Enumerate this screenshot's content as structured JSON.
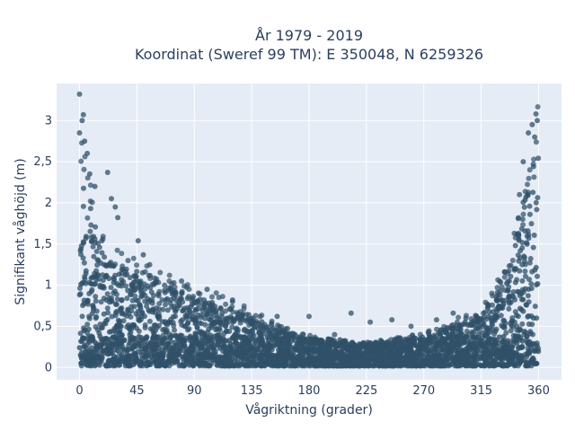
{
  "chart_data": {
    "type": "scatter",
    "title_line1": "År 1979 - 2019",
    "title_line2": "Koordinat (Sweref 99 TM): E 350048, N 6259326",
    "xlabel": "Vågriktning (grader)",
    "ylabel": "Signifikant våghöjd (m)",
    "xlim": [
      -18,
      378
    ],
    "ylim": [
      -0.15,
      3.45
    ],
    "xticks": [
      0,
      45,
      90,
      135,
      180,
      225,
      270,
      315,
      360
    ],
    "xtick_labels": [
      "0",
      "45",
      "90",
      "135",
      "180",
      "225",
      "270",
      "315",
      "360"
    ],
    "yticks": [
      0,
      0.5,
      1,
      1.5,
      2,
      2.5,
      3
    ],
    "ytick_labels": [
      "0",
      "0,5",
      "1",
      "1,5",
      "2",
      "2,5",
      "3"
    ],
    "grid": true,
    "colors": {
      "marker": "#2f5068",
      "plot_bg": "#e5ecf6",
      "grid": "#ffffff",
      "text": "#2a3f5f"
    },
    "envelope": [
      [
        0,
        2.6
      ],
      [
        5,
        2.2
      ],
      [
        10,
        1.9
      ],
      [
        15,
        1.5
      ],
      [
        20,
        1.35
      ],
      [
        30,
        1.25
      ],
      [
        45,
        1.2
      ],
      [
        60,
        1.05
      ],
      [
        75,
        0.95
      ],
      [
        90,
        0.85
      ],
      [
        105,
        0.8
      ],
      [
        120,
        0.72
      ],
      [
        135,
        0.62
      ],
      [
        150,
        0.5
      ],
      [
        165,
        0.42
      ],
      [
        180,
        0.35
      ],
      [
        195,
        0.32
      ],
      [
        210,
        0.3
      ],
      [
        225,
        0.28
      ],
      [
        240,
        0.3
      ],
      [
        255,
        0.33
      ],
      [
        270,
        0.37
      ],
      [
        285,
        0.45
      ],
      [
        300,
        0.55
      ],
      [
        315,
        0.65
      ],
      [
        325,
        0.85
      ],
      [
        335,
        1.1
      ],
      [
        340,
        1.4
      ],
      [
        345,
        1.8
      ],
      [
        350,
        2.2
      ],
      [
        355,
        2.5
      ],
      [
        360,
        2.8
      ]
    ],
    "outliers": [
      [
        0,
        3.32
      ],
      [
        3,
        3.07
      ],
      [
        2,
        3.0
      ],
      [
        0,
        2.85
      ],
      [
        4,
        2.75
      ],
      [
        6,
        2.6
      ],
      [
        8,
        2.35
      ],
      [
        12,
        2.2
      ],
      [
        22,
        2.37
      ],
      [
        25,
        2.05
      ],
      [
        28,
        1.95
      ],
      [
        30,
        1.82
      ],
      [
        38,
        1.3
      ],
      [
        46,
        1.54
      ],
      [
        50,
        1.37
      ],
      [
        55,
        1.25
      ],
      [
        80,
        1.05
      ],
      [
        100,
        0.95
      ],
      [
        120,
        0.8
      ],
      [
        155,
        0.62
      ],
      [
        180,
        0.62
      ],
      [
        200,
        0.4
      ],
      [
        213,
        0.66
      ],
      [
        228,
        0.55
      ],
      [
        245,
        0.58
      ],
      [
        260,
        0.5
      ],
      [
        280,
        0.58
      ],
      [
        293,
        0.66
      ],
      [
        303,
        0.6
      ],
      [
        320,
        0.72
      ],
      [
        345,
        2.1
      ],
      [
        348,
        2.5
      ],
      [
        352,
        2.85
      ],
      [
        355,
        2.95
      ],
      [
        358,
        3.08
      ],
      [
        359,
        3.0
      ],
      [
        357,
        2.8
      ]
    ]
  }
}
